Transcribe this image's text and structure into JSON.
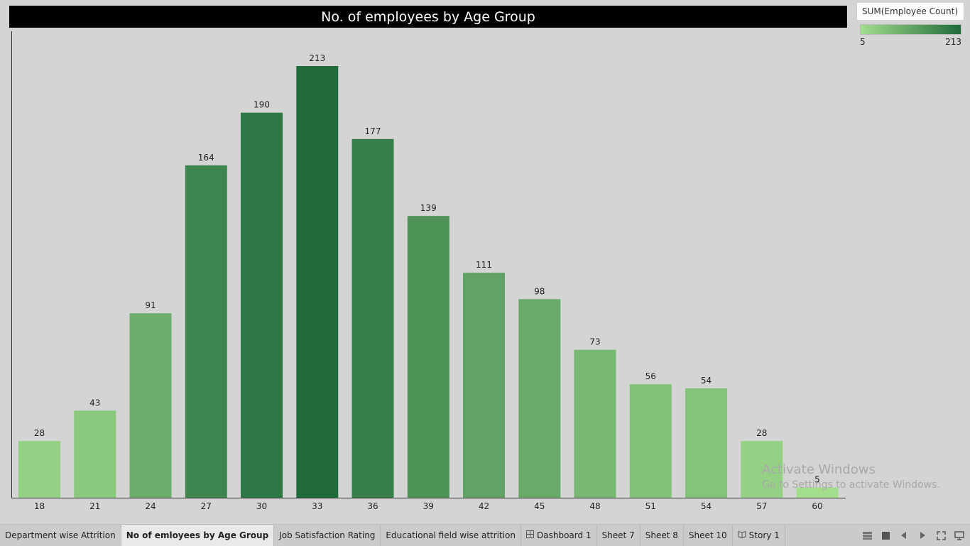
{
  "title": "No. of employees by Age Group",
  "legend": {
    "title": "SUM(Employee Count)",
    "min_label": "5",
    "max_label": "213",
    "color_low": "#a3de8d",
    "color_high": "#1f6b3c"
  },
  "chart_data": {
    "type": "bar",
    "title": "No. of employees by Age Group",
    "categories": [
      "18",
      "21",
      "24",
      "27",
      "30",
      "33",
      "36",
      "39",
      "42",
      "45",
      "48",
      "51",
      "54",
      "57",
      "60"
    ],
    "values": [
      28,
      43,
      91,
      164,
      190,
      213,
      177,
      139,
      111,
      98,
      73,
      56,
      54,
      28,
      5
    ],
    "xlabel": "",
    "ylabel": "",
    "ylim": [
      0,
      213
    ],
    "grid": false,
    "legend_position": "top-right",
    "bar_labels": true
  },
  "watermark": {
    "title": "Activate Windows",
    "subtitle": "Go to Settings to activate Windows."
  },
  "tabs": [
    {
      "label": "Department wise  Attrition",
      "active": false,
      "icon": ""
    },
    {
      "label": "No of emloyees by Age Group",
      "active": true,
      "icon": ""
    },
    {
      "label": "Job Satisfaction Rating",
      "active": false,
      "icon": ""
    },
    {
      "label": "Educational field wise attrition",
      "active": false,
      "icon": ""
    },
    {
      "label": "Dashboard 1",
      "active": false,
      "icon": "dashboard-icon"
    },
    {
      "label": "Sheet 7",
      "active": false,
      "icon": ""
    },
    {
      "label": "Sheet 8",
      "active": false,
      "icon": ""
    },
    {
      "label": "Sheet 10",
      "active": false,
      "icon": ""
    },
    {
      "label": "Story 1",
      "active": false,
      "icon": "story-icon"
    }
  ]
}
